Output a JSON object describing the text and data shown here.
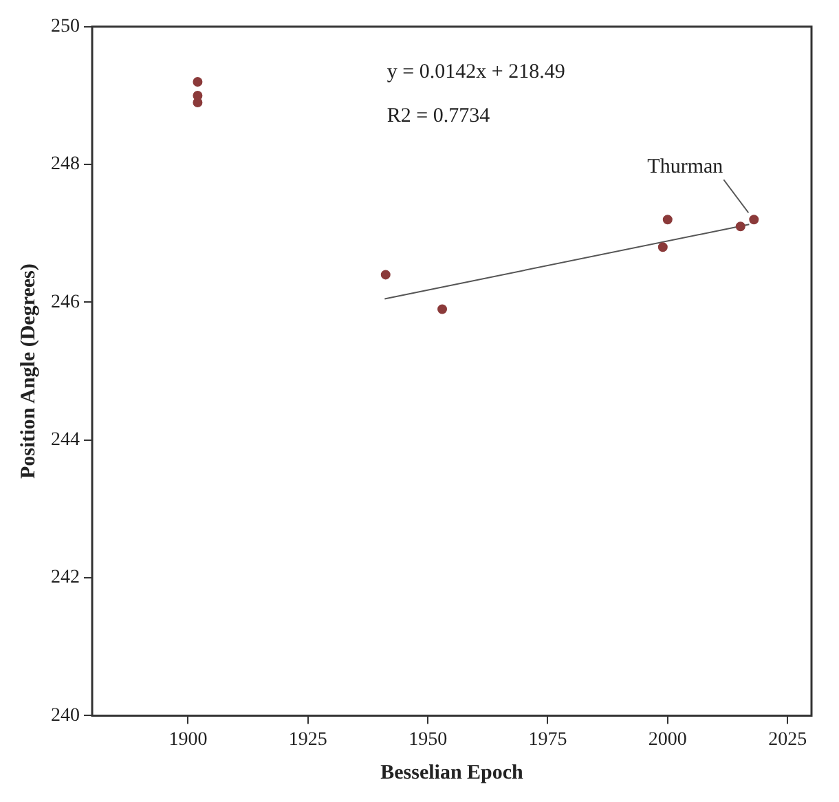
{
  "chart_data": {
    "type": "scatter",
    "xlabel": "Besselian Epoch",
    "ylabel": "Position Angle (Degrees)",
    "xlim": [
      1880,
      2030
    ],
    "ylim": [
      240,
      250
    ],
    "xticks": [
      1900,
      1925,
      1950,
      1975,
      2000,
      2025
    ],
    "yticks": [
      240,
      242,
      244,
      246,
      248,
      250
    ],
    "series": [
      {
        "color": "#8b3a3a",
        "marker": "circle",
        "x": [
          1902,
          1902,
          1902,
          1941.2,
          1953,
          1999,
          2000,
          2015.2,
          2018
        ],
        "values": [
          249.2,
          249.0,
          248.9,
          246.4,
          245.9,
          246.8,
          247.2,
          247.1,
          247.2
        ]
      },
      {
        "type": "line",
        "marker": "none",
        "color": "#555555",
        "x": [
          1941,
          2017
        ],
        "values": [
          246.05,
          247.13
        ]
      }
    ],
    "grid": false,
    "legend": false,
    "annotations": [
      "y = 0.0142x + 218.49",
      "R2 = 0.7734",
      {
        "text": "Thurman",
        "x": 2018,
        "y": 247.2
      }
    ]
  }
}
